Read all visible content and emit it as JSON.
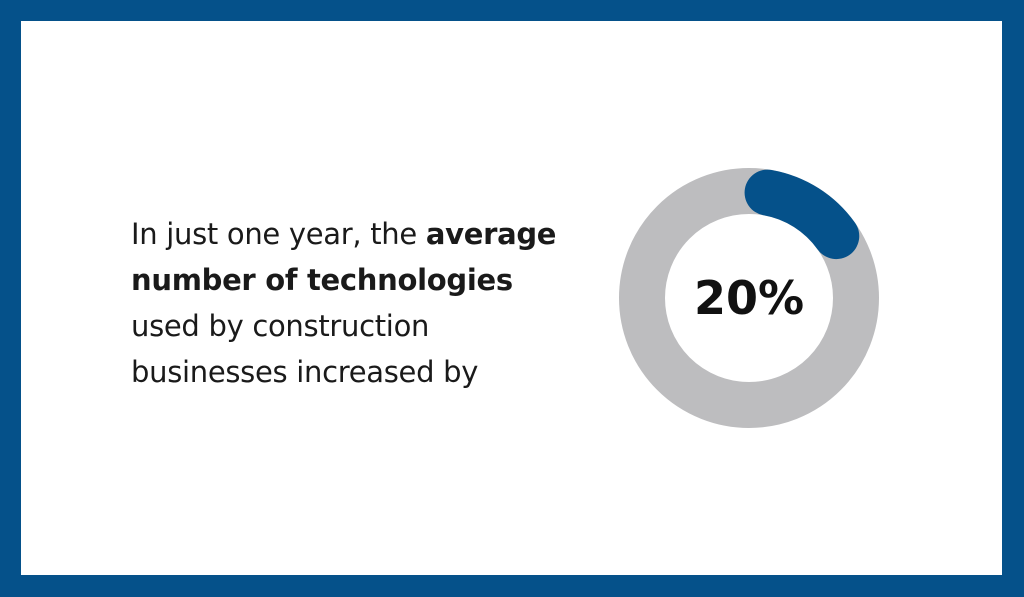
{
  "statement": {
    "line1_regular": "In just one year, the ",
    "line1_bold": "average",
    "line2_bold": "number of technologies",
    "line3": "used by construction",
    "line4": "businesses increased by"
  },
  "chart_data": {
    "type": "pie",
    "style": "donut",
    "value_label": "20%",
    "value_percent": 20,
    "colors": {
      "highlight": "#05518a",
      "track": "#bdbdbf",
      "frame": "#05518a"
    }
  }
}
